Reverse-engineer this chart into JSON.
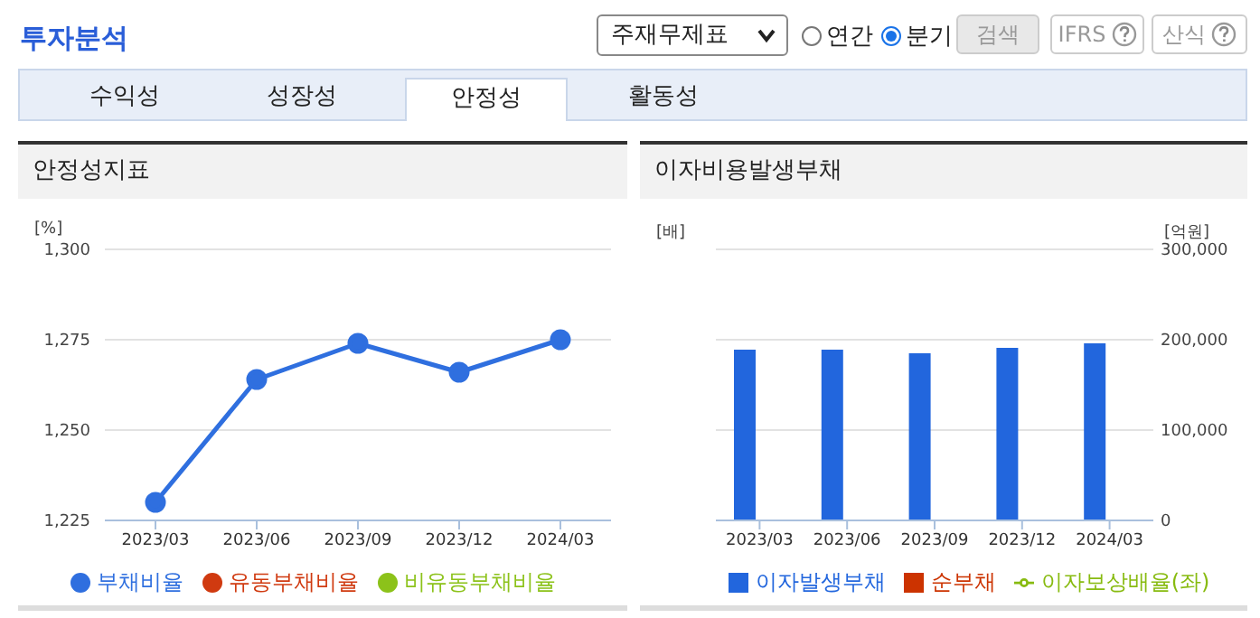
{
  "chart_data": [
    {
      "type": "other",
      "title": "투자분석",
      "annotations": [
        "주재무제표",
        "연간",
        "분기",
        "검색",
        "IFRS",
        "산식",
        "수익성",
        "성장성",
        "안정성",
        "활동성"
      ]
    },
    {
      "type": "line",
      "title": "안정성지표",
      "ylabel": "[%]",
      "categories": [
        "2023/03",
        "2023/06",
        "2023/09",
        "2023/12",
        "2024/03"
      ],
      "series": [
        {
          "name": "부채비율",
          "color": "#2f6fdf",
          "values": [
            1230,
            1264,
            1274,
            1266,
            1275
          ]
        },
        {
          "name": "유동부채비율",
          "color": "#d03a10",
          "values": [
            null,
            null,
            null,
            null,
            null
          ]
        },
        {
          "name": "비유동부채비율",
          "color": "#8cc21a",
          "values": [
            null,
            null,
            null,
            null,
            null
          ]
        }
      ],
      "ylim": [
        1225,
        1300
      ],
      "yticks": [
        {
          "value": 1225,
          "label": "1,225"
        },
        {
          "value": 1250,
          "label": "1,250"
        },
        {
          "value": 1275,
          "label": "1,275"
        },
        {
          "value": 1300,
          "label": "1,300"
        }
      ],
      "grid": "y",
      "legend": "bottom",
      "marker": "circle"
    },
    {
      "type": "bar",
      "title": "이자비용발생부채",
      "ylabel": "[배]",
      "y2label": "[억원]",
      "categories": [
        "2023/03",
        "2023/06",
        "2023/09",
        "2023/12",
        "2024/03"
      ],
      "series": [
        {
          "name": "이자발생부채",
          "color": "#2266dd",
          "values": [
            189000,
            189000,
            185000,
            191000,
            196000
          ],
          "axis": "y2"
        },
        {
          "name": "순부채",
          "color": "#cc3300",
          "values": [
            null,
            null,
            null,
            null,
            null
          ],
          "axis": "y2"
        },
        {
          "name": "이자보상배율(좌)",
          "type": "line",
          "color": "#88bb11",
          "values": [
            null,
            null,
            null,
            null,
            null
          ]
        }
      ],
      "y2lim": [
        0,
        300000
      ],
      "y2ticks": [
        {
          "value": 0,
          "label": "0"
        },
        {
          "value": 100000,
          "label": "100,000"
        },
        {
          "value": 200000,
          "label": "200,000"
        },
        {
          "value": 300000,
          "label": "300,000"
        }
      ],
      "grid": "y",
      "legend": "bottom"
    }
  ]
}
